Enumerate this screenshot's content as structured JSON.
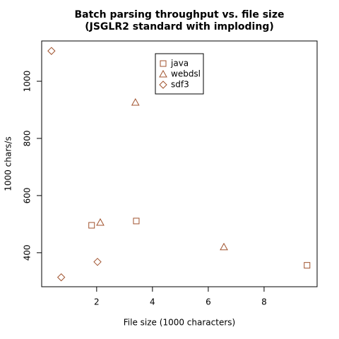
{
  "chart_data": {
    "type": "scatter",
    "title": "Batch parsing throughput vs. file size",
    "subtitle": "(JSGLR2 standard with imploding)",
    "x_label": "File size (1000 characters)",
    "y_label": "1000 chars/s",
    "xlim": [
      0.03,
      9.9
    ],
    "ylim": [
      281,
      1141
    ],
    "xticks": [
      2,
      4,
      6,
      8
    ],
    "yticks": [
      400,
      600,
      800,
      1000
    ],
    "legend": "top-center",
    "series": [
      {
        "name": "java",
        "color": "#a0522d",
        "marker": "square",
        "x": [
          1.82,
          3.42,
          9.54
        ],
        "values": [
          496,
          511,
          356
        ]
      },
      {
        "name": "webdsl",
        "color": "#a0522d",
        "marker": "triangle",
        "x": [
          3.39,
          2.13,
          6.56
        ],
        "values": [
          926,
          506,
          420
        ]
      },
      {
        "name": "sdf3",
        "color": "#a0522d",
        "marker": "diamond",
        "x": [
          0.38,
          0.73,
          2.03
        ],
        "values": [
          1106,
          314,
          368
        ]
      }
    ]
  }
}
